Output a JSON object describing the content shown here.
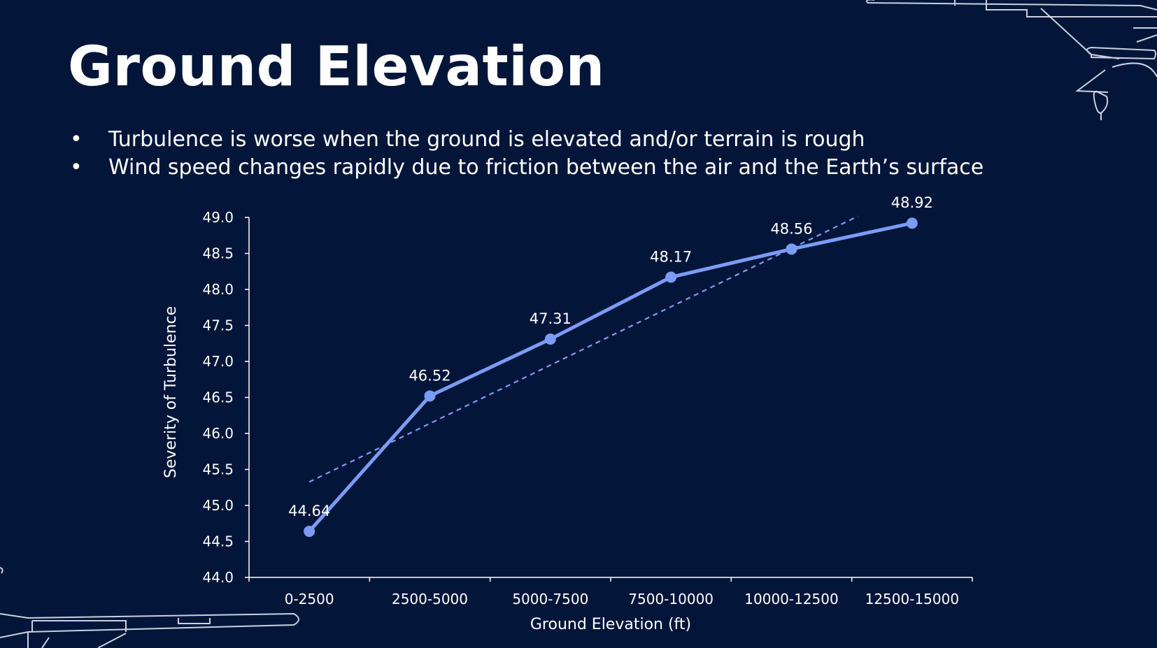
{
  "slide": {
    "title": "Ground Elevation",
    "bullets": [
      "Turbulence is worse when the ground is elevated and/or terrain is rough",
      "Wind speed changes rapidly due to friction between the air and the Earth’s surface"
    ]
  },
  "colors": {
    "background": "#03163a",
    "series": "#7b9cf4",
    "text": "#ffffff"
  },
  "chart_data": {
    "type": "line",
    "title": "",
    "xlabel": "Ground Elevation (ft)",
    "ylabel": "Severity of Turbulence",
    "categories": [
      "0-2500",
      "2500-5000",
      "5000-7500",
      "7500-10000",
      "10000-12500",
      "12500-15000"
    ],
    "series": [
      {
        "values": [
          44.64,
          46.52,
          47.31,
          48.17,
          48.56,
          48.92
        ],
        "data_labels": [
          "44.64",
          "46.52",
          "47.31",
          "48.17",
          "48.56",
          "48.92"
        ]
      }
    ],
    "trendline": {
      "type": "linear",
      "style": "dashed"
    },
    "ylim": [
      44.0,
      49.0
    ],
    "yticks": [
      "44.0",
      "44.5",
      "45.0",
      "45.5",
      "46.0",
      "46.5",
      "47.0",
      "47.5",
      "48.0",
      "48.5",
      "49.0"
    ],
    "grid": false,
    "legend": "none"
  }
}
